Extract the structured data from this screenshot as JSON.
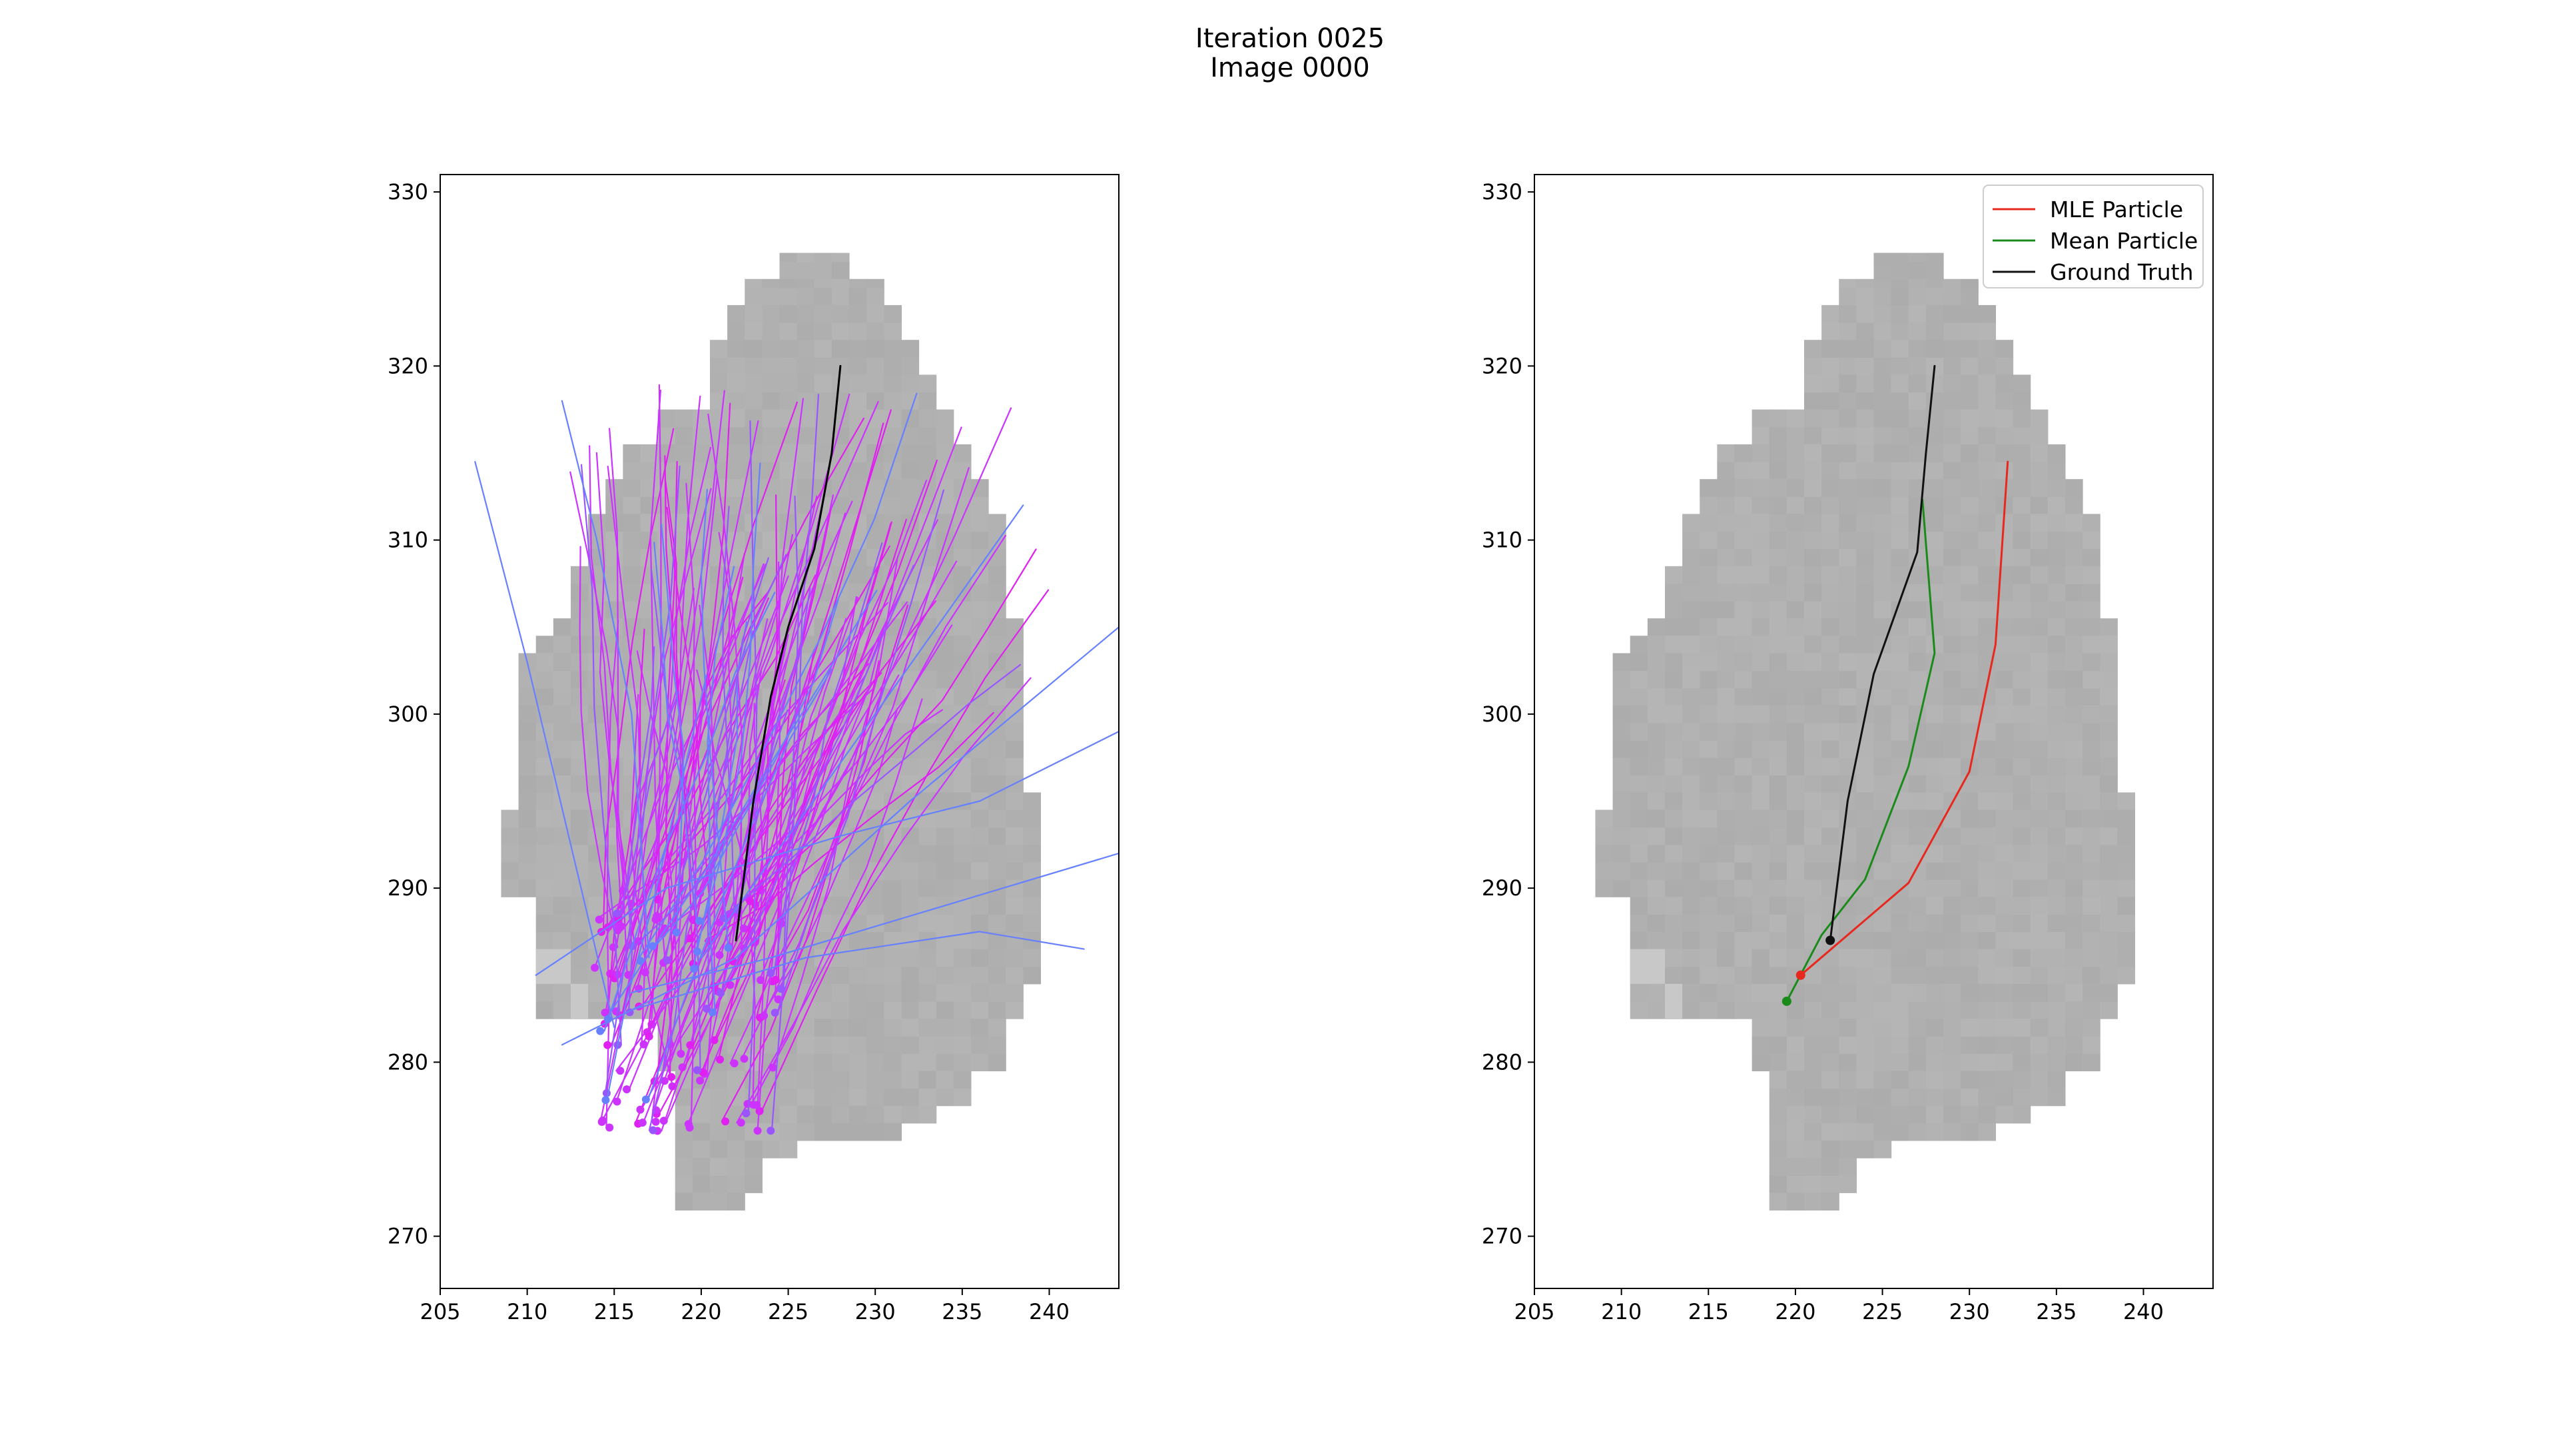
{
  "title_lines": [
    "Iteration 0025",
    "Image 0000"
  ],
  "chart_data": [
    {
      "type": "line",
      "panel": "left",
      "xlim": [
        205,
        244
      ],
      "ylim": [
        267,
        331
      ],
      "xticks": [
        205,
        210,
        215,
        220,
        225,
        230,
        235,
        240
      ],
      "yticks": [
        270,
        280,
        290,
        300,
        310,
        320,
        330
      ],
      "grid": false,
      "background": "gray pixelated region (grayscale heatmap)",
      "particle_colors": [
        "#cc33ff",
        "#b040ff",
        "#9955ff",
        "#6680ff",
        "#e020f0"
      ],
      "ground_truth": {
        "color": "#000000",
        "x": [
          222,
          223,
          224,
          225,
          226.5,
          227.5,
          228
        ],
        "y": [
          287,
          295,
          301,
          305,
          309.5,
          315,
          320
        ]
      },
      "particle_count_shown": 130
    },
    {
      "type": "line",
      "panel": "right",
      "xlim": [
        205,
        244
      ],
      "ylim": [
        267,
        331
      ],
      "xticks": [
        205,
        210,
        215,
        220,
        225,
        230,
        235,
        240
      ],
      "yticks": [
        270,
        280,
        290,
        300,
        310,
        320,
        330
      ],
      "grid": false,
      "legend_position": "upper-right",
      "series": [
        {
          "name": "MLE Particle",
          "color": "#e8281e",
          "x": [
            220.3,
            226.5,
            230,
            231.5,
            232.2
          ],
          "y": [
            285,
            290.3,
            296.7,
            304,
            314.5
          ]
        },
        {
          "name": "Mean Particle",
          "color": "#1a8a1a",
          "x": [
            219.5,
            221.5,
            224,
            226.5,
            228,
            227.3
          ],
          "y": [
            283.5,
            287.3,
            290.5,
            297,
            303.5,
            312.3
          ]
        },
        {
          "name": "Ground Truth",
          "color": "#111111",
          "x": [
            222,
            223,
            224.5,
            227,
            227.5,
            228
          ],
          "y": [
            287,
            295,
            302.3,
            309.3,
            315,
            320
          ]
        }
      ],
      "end_markers": [
        {
          "series": "MLE Particle",
          "x": 220.3,
          "y": 285
        },
        {
          "series": "Mean Particle",
          "x": 219.5,
          "y": 283.5
        },
        {
          "series": "Ground Truth",
          "x": 222,
          "y": 287
        }
      ]
    }
  ]
}
